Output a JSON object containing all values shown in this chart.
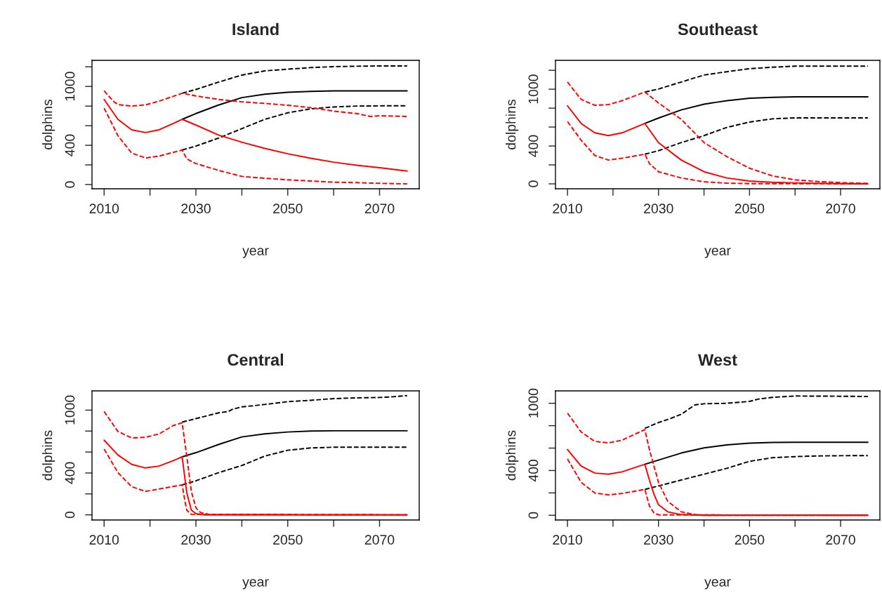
{
  "chart_data": [
    {
      "type": "line",
      "title": "Island",
      "xlabel": "year",
      "ylabel": "dolphins",
      "xlim": [
        2007.36,
        2078.64
      ],
      "ylim": [
        -43,
        1266
      ],
      "xticks": [
        2010,
        {
          "value": 2020,
          "label": null
        },
        2030,
        {
          "value": 2040,
          "label": null
        },
        2050,
        {
          "value": 2060,
          "label": null
        },
        2070
      ],
      "yticks": [
        0,
        {
          "value": 200,
          "label": null
        },
        400,
        {
          "value": 600,
          "label": null
        },
        {
          "value": 800,
          "label": null
        },
        1000,
        {
          "value": 1200,
          "label": null
        }
      ],
      "series": [
        {
          "color": "#000000",
          "line_style": "solid",
          "x": [
            2027,
            2030,
            2035,
            2040,
            2045,
            2050,
            2055,
            2060,
            2065,
            2070,
            2076
          ],
          "values": [
            665,
            724,
            812,
            886,
            921,
            940,
            950,
            955,
            955,
            955,
            955
          ]
        },
        {
          "color": "#000000",
          "line_style": "dashed",
          "x": [
            2027,
            2030,
            2035,
            2040,
            2045,
            2050,
            2055,
            2060,
            2065,
            2070,
            2076
          ],
          "values": [
            931,
            969,
            1045,
            1116,
            1159,
            1176,
            1192,
            1202,
            1206,
            1209,
            1209
          ]
        },
        {
          "color": "#000000",
          "line_style": "dashed",
          "x": [
            2027,
            2030,
            2035,
            2040,
            2045,
            2050,
            2055,
            2060,
            2065,
            2070,
            2076
          ],
          "values": [
            352,
            392,
            475,
            570,
            665,
            731,
            772,
            791,
            800,
            802,
            803
          ]
        },
        {
          "color": "#ff0000",
          "line_style": "solid",
          "x": [
            2010,
            2013,
            2016,
            2019,
            2022,
            2025,
            2027,
            2030,
            2035,
            2040,
            2045,
            2050,
            2055,
            2060,
            2065,
            2070,
            2076
          ],
          "values": [
            867,
            665,
            558,
            530,
            558,
            622,
            665,
            606,
            503,
            432,
            368,
            314,
            268,
            228,
            197,
            171,
            138
          ]
        },
        {
          "color": "#ff0000",
          "line_style": "dashed",
          "x": [
            2010,
            2012,
            2013,
            2016,
            2019,
            2022,
            2027,
            2030,
            2035,
            2040,
            2045,
            2050,
            2055,
            2060,
            2065,
            2068,
            2070,
            2076
          ],
          "values": [
            955,
            850,
            815,
            800,
            812,
            850,
            931,
            903,
            867,
            843,
            827,
            808,
            784,
            748,
            724,
            694,
            701,
            694
          ]
        },
        {
          "color": "#ff0000",
          "line_style": "dashed",
          "x": [
            2010,
            2013,
            2016,
            2019,
            2022,
            2027,
            2028,
            2030,
            2035,
            2040,
            2045,
            2050,
            2055,
            2060,
            2065,
            2070,
            2076
          ],
          "values": [
            779,
            499,
            321,
            271,
            290,
            352,
            261,
            214,
            143,
            83,
            64,
            48,
            36,
            24,
            19,
            12,
            7
          ]
        }
      ]
    },
    {
      "type": "line",
      "title": "Southeast",
      "xlabel": "year",
      "ylabel": "dolphins",
      "xlim": [
        2007.36,
        2078.64
      ],
      "ylim": [
        -52,
        1305
      ],
      "xticks": [
        2010,
        {
          "value": 2020,
          "label": null
        },
        2030,
        {
          "value": 2040,
          "label": null
        },
        2050,
        {
          "value": 2060,
          "label": null
        },
        2070
      ],
      "yticks": [
        0,
        {
          "value": 200,
          "label": null
        },
        400,
        {
          "value": 600,
          "label": null
        },
        {
          "value": 800,
          "label": null
        },
        1000,
        {
          "value": 1200,
          "label": null
        }
      ],
      "series": [
        {
          "color": "#000000",
          "line_style": "solid",
          "x": [
            2027,
            2030,
            2035,
            2040,
            2045,
            2050,
            2055,
            2060,
            2065,
            2070,
            2076
          ],
          "values": [
            638,
            695,
            781,
            842,
            879,
            904,
            914,
            919,
            919,
            919,
            919
          ]
        },
        {
          "color": "#000000",
          "line_style": "dashed",
          "x": [
            2027,
            2030,
            2035,
            2040,
            2045,
            2050,
            2055,
            2060,
            2065,
            2070,
            2076
          ],
          "values": [
            970,
            1002,
            1076,
            1150,
            1185,
            1217,
            1232,
            1244,
            1244,
            1244,
            1244
          ]
        },
        {
          "color": "#000000",
          "line_style": "dashed",
          "x": [
            2027,
            2030,
            2035,
            2040,
            2045,
            2050,
            2055,
            2060,
            2065,
            2070,
            2076
          ],
          "values": [
            313,
            350,
            436,
            510,
            596,
            653,
            687,
            697,
            697,
            697,
            697
          ]
        },
        {
          "color": "#ff0000",
          "line_style": "solid",
          "x": [
            2010,
            2013,
            2016,
            2019,
            2022,
            2027,
            2030,
            2035,
            2040,
            2045,
            2050,
            2055,
            2060,
            2065,
            2070,
            2076
          ],
          "values": [
            825,
            638,
            539,
            510,
            539,
            638,
            436,
            251,
            128,
            62,
            30,
            17,
            10,
            5,
            2,
            0
          ]
        },
        {
          "color": "#ff0000",
          "line_style": "dashed",
          "x": [
            2010,
            2013,
            2016,
            2019,
            2022,
            2027,
            2030,
            2035,
            2040,
            2045,
            2050,
            2055,
            2060,
            2065,
            2070,
            2076
          ],
          "values": [
            1076,
            892,
            830,
            837,
            879,
            970,
            855,
            682,
            436,
            288,
            165,
            84,
            42,
            25,
            12,
            5
          ]
        },
        {
          "color": "#ff0000",
          "line_style": "dashed",
          "x": [
            2010,
            2013,
            2016,
            2019,
            2022,
            2027,
            2028,
            2030,
            2035,
            2040,
            2045,
            2050,
            2076
          ],
          "values": [
            658,
            461,
            300,
            251,
            271,
            313,
            214,
            128,
            62,
            22,
            7,
            2,
            0
          ]
        }
      ]
    },
    {
      "type": "line",
      "title": "Central",
      "xlabel": "year",
      "ylabel": "dolphins",
      "xlim": [
        2007.36,
        2078.64
      ],
      "ylim": [
        -49,
        1184
      ],
      "xticks": [
        2010,
        {
          "value": 2020,
          "label": null
        },
        2030,
        {
          "value": 2040,
          "label": null
        },
        2050,
        {
          "value": 2060,
          "label": null
        },
        2070
      ],
      "yticks": [
        0,
        {
          "value": 200,
          "label": null
        },
        400,
        {
          "value": 600,
          "label": null
        },
        {
          "value": 800,
          "label": null
        },
        1000
      ],
      "series": [
        {
          "color": "#000000",
          "line_style": "solid",
          "x": [
            2027,
            2030,
            2035,
            2040,
            2045,
            2050,
            2055,
            2060,
            2065,
            2070,
            2076
          ],
          "values": [
            554,
            594,
            673,
            744,
            773,
            791,
            800,
            803,
            803,
            803,
            803
          ]
        },
        {
          "color": "#000000",
          "line_style": "dashed",
          "x": [
            2027,
            2030,
            2035,
            2037,
            2038,
            2040,
            2045,
            2050,
            2055,
            2060,
            2065,
            2070,
            2073,
            2076
          ],
          "values": [
            886,
            919,
            975,
            986,
            1009,
            1031,
            1054,
            1081,
            1094,
            1110,
            1117,
            1121,
            1128,
            1139
          ]
        },
        {
          "color": "#000000",
          "line_style": "dashed",
          "x": [
            2027,
            2030,
            2035,
            2040,
            2045,
            2050,
            2055,
            2060,
            2065,
            2070,
            2076
          ],
          "values": [
            287,
            325,
            404,
            471,
            561,
            617,
            639,
            646,
            646,
            646,
            646
          ]
        },
        {
          "color": "#ff0000",
          "line_style": "solid",
          "x": [
            2010,
            2013,
            2016,
            2019,
            2022,
            2025,
            2027,
            2028,
            2029,
            2030,
            2032,
            2076
          ],
          "values": [
            713,
            572,
            482,
            448,
            466,
            516,
            554,
            213,
            45,
            11,
            0,
            0
          ]
        },
        {
          "color": "#ff0000",
          "line_style": "dashed",
          "x": [
            2010,
            2013,
            2016,
            2019,
            2022,
            2025,
            2027,
            2028,
            2029,
            2030,
            2031,
            2033,
            2076
          ],
          "values": [
            987,
            796,
            735,
            740,
            773,
            852,
            879,
            561,
            224,
            67,
            22,
            4,
            0
          ]
        },
        {
          "color": "#ff0000",
          "line_style": "dashed",
          "x": [
            2010,
            2013,
            2016,
            2019,
            2022,
            2027,
            2027.5,
            2028,
            2029,
            2076
          ],
          "values": [
            628,
            404,
            269,
            224,
            247,
            287,
            157,
            45,
            4,
            0
          ]
        }
      ]
    },
    {
      "type": "line",
      "title": "West",
      "xlabel": "year",
      "ylabel": "dolphins",
      "xlim": [
        2007.36,
        2078.64
      ],
      "ylim": [
        -42,
        1111
      ],
      "xticks": [
        2010,
        {
          "value": 2020,
          "label": null
        },
        2030,
        {
          "value": 2040,
          "label": null
        },
        2050,
        {
          "value": 2060,
          "label": null
        },
        2070
      ],
      "yticks": [
        0,
        {
          "value": 200,
          "label": null
        },
        400,
        {
          "value": 600,
          "label": null
        },
        {
          "value": 800,
          "label": null
        },
        1000
      ],
      "series": [
        {
          "color": "#000000",
          "line_style": "solid",
          "x": [
            2027,
            2030,
            2035,
            2040,
            2045,
            2050,
            2055,
            2060,
            2065,
            2070,
            2076
          ],
          "values": [
            455,
            493,
            556,
            602,
            629,
            644,
            650,
            652,
            652,
            652,
            652
          ]
        },
        {
          "color": "#000000",
          "line_style": "dashed",
          "x": [
            2027,
            2030,
            2033,
            2035,
            2038,
            2040,
            2045,
            2050,
            2052,
            2055,
            2060,
            2070,
            2076
          ],
          "values": [
            776,
            828,
            870,
            902,
            986,
            996,
            1000,
            1017,
            1038,
            1053,
            1065,
            1063,
            1061
          ]
        },
        {
          "color": "#000000",
          "line_style": "dashed",
          "x": [
            2027,
            2030,
            2035,
            2040,
            2045,
            2050,
            2055,
            2060,
            2065,
            2070,
            2076
          ],
          "values": [
            231,
            262,
            315,
            367,
            419,
            482,
            514,
            524,
            530,
            532,
            533
          ]
        },
        {
          "color": "#ff0000",
          "line_style": "solid",
          "x": [
            2010,
            2013,
            2016,
            2019,
            2022,
            2027,
            2028,
            2029,
            2030,
            2032,
            2035,
            2040,
            2076
          ],
          "values": [
            587,
            440,
            377,
            367,
            388,
            455,
            315,
            189,
            94,
            31,
            6,
            0,
            0
          ]
        },
        {
          "color": "#ff0000",
          "line_style": "dashed",
          "x": [
            2010,
            2013,
            2016,
            2019,
            2022,
            2027,
            2028,
            2030,
            2032,
            2035,
            2038,
            2040,
            2076
          ],
          "values": [
            912,
            744,
            660,
            646,
            671,
            765,
            587,
            294,
            126,
            31,
            6,
            0,
            0
          ]
        },
        {
          "color": "#ff0000",
          "line_style": "dashed",
          "x": [
            2010,
            2013,
            2016,
            2019,
            2022,
            2027,
            2028,
            2029,
            2030,
            2076
          ],
          "values": [
            503,
            294,
            199,
            182,
            195,
            231,
            84,
            21,
            4,
            0
          ]
        }
      ]
    }
  ]
}
